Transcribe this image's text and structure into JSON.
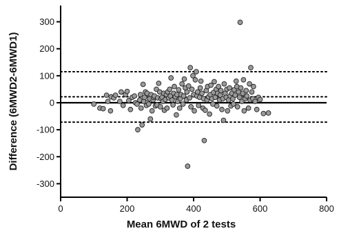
{
  "chart_data": {
    "type": "scatter",
    "title": "",
    "xlabel": "Mean 6MWD of 2 tests",
    "ylabel": "Difference (6MWD2-6MWD1)",
    "xlim": [
      0,
      800
    ],
    "ylim": [
      -350,
      350
    ],
    "x_ticks": [
      0,
      200,
      400,
      600,
      800
    ],
    "y_ticks": [
      -300,
      -200,
      -100,
      0,
      100,
      200,
      300
    ],
    "grid": false,
    "reference_lines": [
      {
        "role": "zero-line",
        "y": 0,
        "style": "solid"
      },
      {
        "role": "upper-limit",
        "y": 115,
        "style": "dotted"
      },
      {
        "role": "mean-difference",
        "y": 22,
        "style": "dotted"
      },
      {
        "role": "lower-limit",
        "y": -72,
        "style": "dotted"
      }
    ],
    "marker_fill": "#9a9a9a",
    "marker_stroke": "#222222",
    "line_color": "#000000",
    "points": [
      [
        100,
        -5
      ],
      [
        118,
        -20
      ],
      [
        128,
        -22
      ],
      [
        138,
        28
      ],
      [
        142,
        5
      ],
      [
        150,
        -30
      ],
      [
        152,
        22
      ],
      [
        160,
        18
      ],
      [
        165,
        28
      ],
      [
        178,
        5
      ],
      [
        182,
        40
      ],
      [
        188,
        -10
      ],
      [
        195,
        30
      ],
      [
        200,
        42
      ],
      [
        205,
        8
      ],
      [
        210,
        -25
      ],
      [
        215,
        20
      ],
      [
        222,
        25
      ],
      [
        225,
        0
      ],
      [
        230,
        -5
      ],
      [
        232,
        -100
      ],
      [
        238,
        10
      ],
      [
        240,
        30
      ],
      [
        242,
        -20
      ],
      [
        245,
        -82
      ],
      [
        248,
        68
      ],
      [
        250,
        5
      ],
      [
        252,
        20
      ],
      [
        255,
        40
      ],
      [
        258,
        -10
      ],
      [
        260,
        35
      ],
      [
        262,
        2
      ],
      [
        265,
        -5
      ],
      [
        268,
        15
      ],
      [
        270,
        -60
      ],
      [
        272,
        30
      ],
      [
        275,
        -30
      ],
      [
        278,
        10
      ],
      [
        280,
        20
      ],
      [
        282,
        25
      ],
      [
        285,
        -12
      ],
      [
        288,
        50
      ],
      [
        290,
        -8
      ],
      [
        292,
        18
      ],
      [
        295,
        72
      ],
      [
        298,
        40
      ],
      [
        300,
        -15
      ],
      [
        302,
        15
      ],
      [
        305,
        20
      ],
      [
        308,
        5
      ],
      [
        310,
        35
      ],
      [
        312,
        -28
      ],
      [
        315,
        12
      ],
      [
        318,
        30
      ],
      [
        320,
        -20
      ],
      [
        322,
        40
      ],
      [
        325,
        18
      ],
      [
        328,
        50
      ],
      [
        330,
        25
      ],
      [
        332,
        92
      ],
      [
        335,
        10
      ],
      [
        338,
        -8
      ],
      [
        340,
        35
      ],
      [
        342,
        60
      ],
      [
        345,
        22
      ],
      [
        348,
        -45
      ],
      [
        350,
        30
      ],
      [
        352,
        5
      ],
      [
        355,
        48
      ],
      [
        358,
        -20
      ],
      [
        360,
        15
      ],
      [
        362,
        30
      ],
      [
        365,
        70
      ],
      [
        368,
        -5
      ],
      [
        370,
        25
      ],
      [
        372,
        88
      ],
      [
        375,
        55
      ],
      [
        378,
        10
      ],
      [
        380,
        40
      ],
      [
        382,
        -235
      ],
      [
        385,
        62
      ],
      [
        388,
        18
      ],
      [
        390,
        130
      ],
      [
        392,
        -15
      ],
      [
        395,
        50
      ],
      [
        398,
        100
      ],
      [
        400,
        30
      ],
      [
        402,
        -30
      ],
      [
        405,
        85
      ],
      [
        408,
        115
      ],
      [
        410,
        25
      ],
      [
        412,
        40
      ],
      [
        415,
        -10
      ],
      [
        418,
        20
      ],
      [
        420,
        55
      ],
      [
        422,
        80
      ],
      [
        425,
        35
      ],
      [
        428,
        -20
      ],
      [
        430,
        15
      ],
      [
        432,
        -140
      ],
      [
        435,
        -28
      ],
      [
        438,
        45
      ],
      [
        440,
        10
      ],
      [
        442,
        60
      ],
      [
        445,
        22
      ],
      [
        448,
        -42
      ],
      [
        450,
        30
      ],
      [
        452,
        65
      ],
      [
        455,
        15
      ],
      [
        458,
        -5
      ],
      [
        460,
        38
      ],
      [
        462,
        78
      ],
      [
        465,
        20
      ],
      [
        468,
        50
      ],
      [
        470,
        -12
      ],
      [
        472,
        35
      ],
      [
        475,
        60
      ],
      [
        478,
        10
      ],
      [
        480,
        28
      ],
      [
        482,
        45
      ],
      [
        485,
        -25
      ],
      [
        488,
        15
      ],
      [
        490,
        -65
      ],
      [
        492,
        70
      ],
      [
        495,
        35
      ],
      [
        498,
        20
      ],
      [
        500,
        50
      ],
      [
        502,
        -30
      ],
      [
        505,
        10
      ],
      [
        508,
        55
      ],
      [
        510,
        25
      ],
      [
        512,
        -12
      ],
      [
        515,
        35
      ],
      [
        518,
        15
      ],
      [
        520,
        -5
      ],
      [
        522,
        48
      ],
      [
        525,
        28
      ],
      [
        528,
        80
      ],
      [
        530,
        60
      ],
      [
        532,
        -15
      ],
      [
        535,
        40
      ],
      [
        538,
        20
      ],
      [
        540,
        298
      ],
      [
        542,
        55
      ],
      [
        545,
        5
      ],
      [
        548,
        35
      ],
      [
        550,
        85
      ],
      [
        552,
        -30
      ],
      [
        555,
        15
      ],
      [
        558,
        45
      ],
      [
        560,
        25
      ],
      [
        565,
        -20
      ],
      [
        568,
        70
      ],
      [
        570,
        10
      ],
      [
        572,
        130
      ],
      [
        575,
        40
      ],
      [
        578,
        15
      ],
      [
        580,
        60
      ],
      [
        585,
        5
      ],
      [
        590,
        -25
      ],
      [
        595,
        20
      ],
      [
        600,
        12
      ],
      [
        610,
        -40
      ],
      [
        625,
        -38
      ]
    ]
  }
}
